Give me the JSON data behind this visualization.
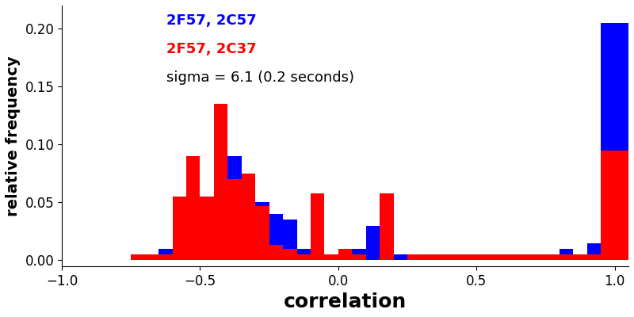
{
  "title": "",
  "xlabel": "correlation",
  "ylabel": "relative frequency",
  "xlim": [
    -1,
    1.05
  ],
  "ylim": [
    -0.005,
    0.22
  ],
  "legend_labels": [
    "2F57, 2C57",
    "2F57, 2C37"
  ],
  "legend_colors": [
    "#0000ff",
    "#ff0000"
  ],
  "annotation": "sigma = 6.1 (0.2 seconds)",
  "bin_edges": [
    -1.0,
    -0.95,
    -0.9,
    -0.85,
    -0.8,
    -0.75,
    -0.7,
    -0.65,
    -0.6,
    -0.55,
    -0.5,
    -0.45,
    -0.4,
    -0.35,
    -0.3,
    -0.25,
    -0.2,
    -0.15,
    -0.1,
    -0.05,
    0.0,
    0.05,
    0.1,
    0.15,
    0.2,
    0.25,
    0.3,
    0.35,
    0.4,
    0.45,
    0.5,
    0.55,
    0.6,
    0.65,
    0.7,
    0.75,
    0.8,
    0.85,
    0.9,
    0.95,
    1.05
  ],
  "blue_values": [
    0.0,
    0.0,
    0.0,
    0.0,
    0.0,
    0.0,
    0.005,
    0.01,
    0.02,
    0.04,
    0.035,
    0.065,
    0.09,
    0.07,
    0.05,
    0.04,
    0.035,
    0.01,
    0.01,
    0.005,
    0.005,
    0.01,
    0.03,
    0.005,
    0.005,
    0.005,
    0.005,
    0.005,
    0.005,
    0.005,
    0.005,
    0.005,
    0.005,
    0.005,
    0.005,
    0.005,
    0.01,
    0.005,
    0.015,
    0.205
  ],
  "red_values": [
    0.0,
    0.0,
    0.0,
    0.0,
    0.0,
    0.005,
    0.005,
    0.005,
    0.055,
    0.09,
    0.055,
    0.135,
    0.07,
    0.075,
    0.047,
    0.013,
    0.01,
    0.005,
    0.058,
    0.005,
    0.01,
    0.005,
    0.0,
    0.058,
    0.0,
    0.005,
    0.005,
    0.005,
    0.005,
    0.005,
    0.005,
    0.005,
    0.005,
    0.005,
    0.005,
    0.005,
    0.005,
    0.005,
    0.005,
    0.095
  ],
  "blue_color": "#0000ff",
  "red_color": "#ff0000",
  "yticks": [
    0.0,
    0.05,
    0.1,
    0.15,
    0.2
  ],
  "xticks": [
    -1,
    -0.5,
    0,
    0.5,
    1
  ],
  "background_color": "#ffffff",
  "xlabel_fontsize": 18,
  "ylabel_fontsize": 14,
  "tick_fontsize": 12,
  "legend_fontsize": 13,
  "annotation_fontsize": 13
}
